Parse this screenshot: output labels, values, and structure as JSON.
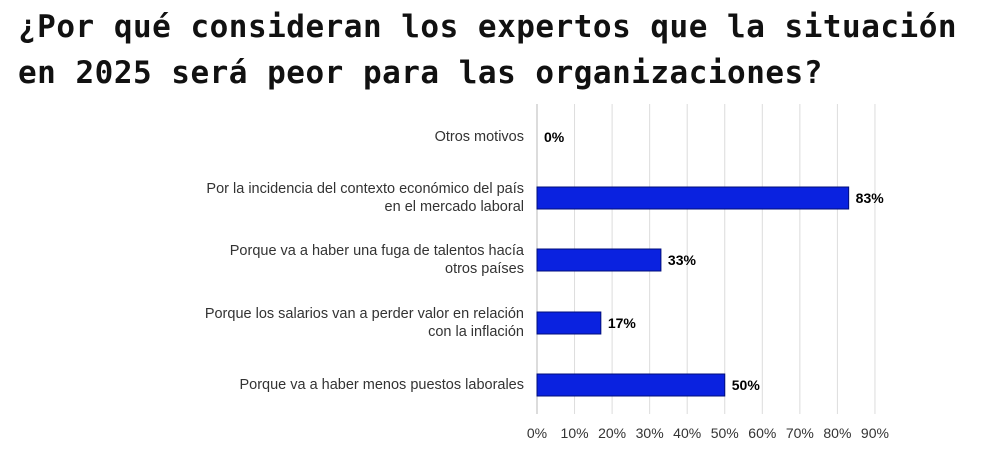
{
  "chart_data": {
    "type": "bar",
    "orientation": "horizontal",
    "title": "¿Por qué consideran los expertos que la situación en 2025 será peor para las organizaciones?",
    "categories": [
      "Otros motivos",
      "Por la incidencia del contexto económico del país en el mercado laboral",
      "Porque va a haber una fuga de talentos hacía otros países",
      "Porque los salarios van a perder valor en relación con la inflación",
      "Porque va a haber menos puestos laborales"
    ],
    "values": [
      0,
      83,
      33,
      17,
      50
    ],
    "value_labels": [
      "0%",
      "83%",
      "33%",
      "17%",
      "50%"
    ],
    "x_ticks": [
      0,
      10,
      20,
      30,
      40,
      50,
      60,
      70,
      80,
      90
    ],
    "x_tick_labels": [
      "0%",
      "10%",
      "20%",
      "30%",
      "40%",
      "50%",
      "60%",
      "70%",
      "80%",
      "90%"
    ],
    "xlim": [
      0,
      90
    ],
    "grid": true,
    "bar_color": "#0a22e0",
    "bar_border_color": "#000d7a",
    "xlabel": "",
    "ylabel": ""
  }
}
